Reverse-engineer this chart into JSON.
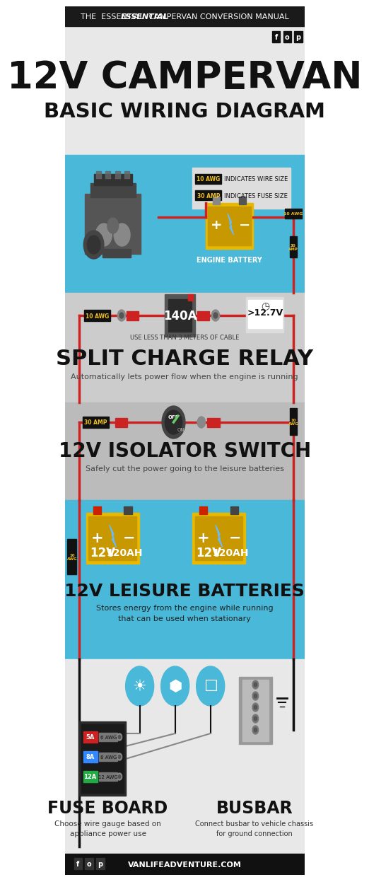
{
  "bg_color": "#e8e8e8",
  "header_bg": "#1a1a1a",
  "blue_bg": "#4ab8d8",
  "yellow": "#f0c020",
  "red": "#cc2222",
  "white": "#ffffff",
  "black": "#111111",
  "dark_gray": "#333333",
  "medium_gray": "#666666",
  "light_gray": "#aaaaaa",
  "battery_yellow": "#e8b800",
  "title_line1": "12V CAMPERVAN",
  "title_line2": "BASIC WIRING DIAGRAM",
  "header_text": "THE  ESSENTIAL  CAMPERVAN CONVERSION MANUAL",
  "section1_title": "SPLIT CHARGE RELAY",
  "section1_sub": "Automatically lets power flow when the engine is running",
  "section2_title": "12V ISOLATOR SWITCH",
  "section2_sub": "Safely cut the power going to the leisure batteries",
  "section3_title": "12V LEISURE BATTERIES",
  "section3_sub1": "Stores energy from the engine while running",
  "section3_sub2": "that can be used when stationary",
  "section4a_title": "FUSE BOARD",
  "section4a_sub1": "Choose wire gauge based on",
  "section4a_sub2": "appliance power use",
  "section4b_title": "BUSBAR",
  "section4b_sub1": "Connect busbar to vehicle chassis",
  "section4b_sub2": "for ground connection",
  "legend1": "INDICATES WIRE SIZE",
  "legend2": "INDICATES FUSE SIZE",
  "relay_label": "140A",
  "voltage_label": ">12.7V",
  "engine_label": "ENGINE BATTERY",
  "cable_note": "USE LESS THAN 3 METERS OF CABLE",
  "battery_v": "12V",
  "battery_ah": "120AH",
  "footer_url": "VANLIFEADVENTURE.COM",
  "fuse_amps": [
    "5A",
    "8A",
    "12A"
  ],
  "fuse_awgs": [
    "6 AWG",
    "8 AWG",
    "12 AWG"
  ],
  "fuse_colors": [
    "#cc2222",
    "#3388ff",
    "#22aa44"
  ]
}
